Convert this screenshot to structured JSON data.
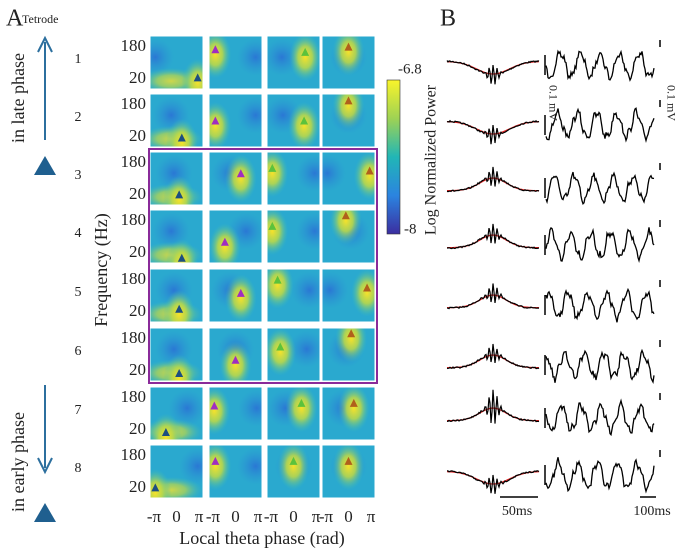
{
  "panel_a": {
    "label": "A",
    "tetrode_header": "Tetrode",
    "rows": [
      {
        "tetrode": "1",
        "yticks": [
          "180",
          "20"
        ]
      },
      {
        "tetrode": "2",
        "yticks": [
          "180",
          "20"
        ]
      },
      {
        "tetrode": "3",
        "yticks": [
          "180",
          "20"
        ]
      },
      {
        "tetrode": "4",
        "yticks": [
          "180",
          "20"
        ]
      },
      {
        "tetrode": "5",
        "yticks": [
          "180",
          "20"
        ]
      },
      {
        "tetrode": "6",
        "yticks": [
          "180",
          "20"
        ]
      },
      {
        "tetrode": "7",
        "yticks": [
          "180",
          "20"
        ]
      },
      {
        "tetrode": "8",
        "yticks": [
          "180",
          "20"
        ]
      }
    ],
    "x_ticks": [
      [
        "-π",
        "0",
        "π"
      ],
      [
        "-π",
        "0",
        "π"
      ],
      [
        "-π",
        "0",
        "π"
      ],
      [
        "-π",
        "0",
        "π"
      ]
    ],
    "x_label": "Local theta phase (rad)",
    "y_label": "Frequency (Hz)",
    "late_label": "in late phase",
    "early_label": "in early phase",
    "colorbar": {
      "max": "-6.8",
      "min": "-8",
      "label": "Log Normalized Power"
    }
  },
  "panel_b": {
    "label": "B",
    "scale_left": "0.1 mV",
    "scale_right": "0.1 mV",
    "time_left": "50ms",
    "time_right": "100ms"
  }
}
